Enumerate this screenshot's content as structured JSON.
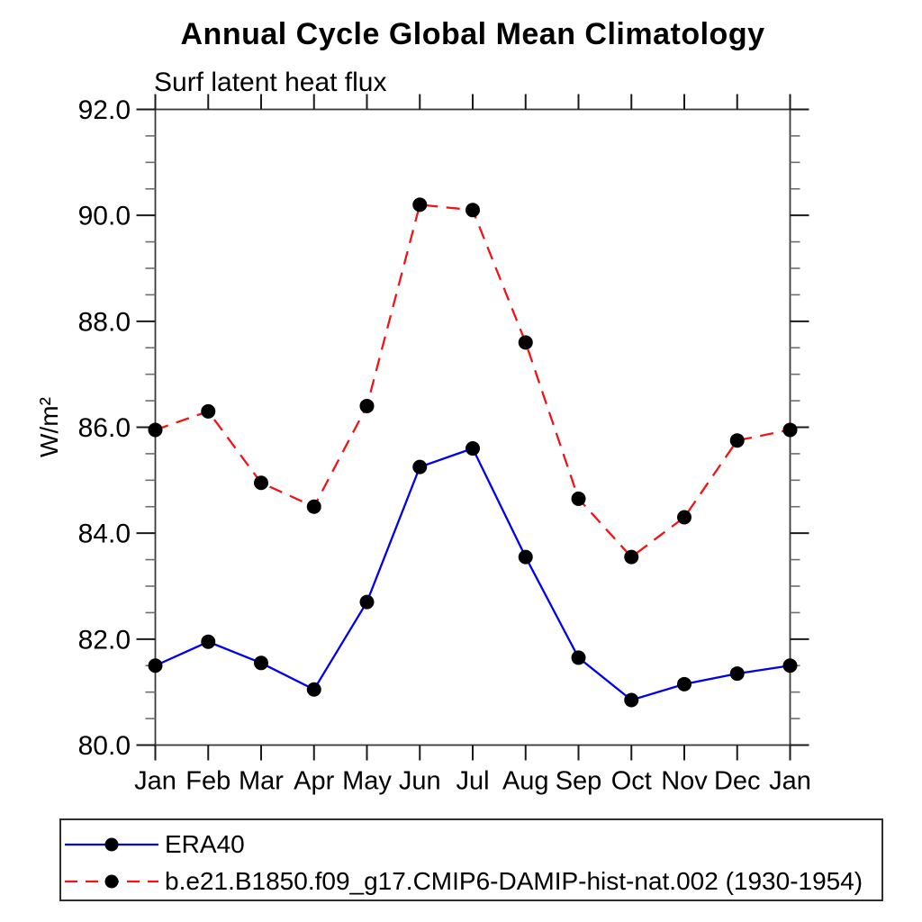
{
  "title": "Annual Cycle Global Mean Climatology",
  "subtitle": "Surf latent heat flux",
  "chart_data": {
    "type": "line",
    "title": "Annual Cycle Global Mean Climatology",
    "subtitle": "Surf latent heat flux",
    "ylabel": "W/m²",
    "categories": [
      "Jan",
      "Feb",
      "Mar",
      "Apr",
      "May",
      "Jun",
      "Jul",
      "Aug",
      "Sep",
      "Oct",
      "Nov",
      "Dec",
      "Jan"
    ],
    "ylim": [
      80.0,
      92.0
    ],
    "ytick_major_step": 2.0,
    "ytick_minor_step": 0.5,
    "ytick_labels": [
      "80.0",
      "82.0",
      "84.0",
      "86.0",
      "88.0",
      "90.0",
      "92.0"
    ],
    "grid": false,
    "legend_position": "bottom-left-box",
    "marker": "filled-circle",
    "marker_color": "#000000",
    "series": [
      {
        "name": "ERA40",
        "color": "#0000ee",
        "style": "solid",
        "values": [
          81.5,
          81.95,
          81.55,
          81.05,
          82.7,
          85.25,
          85.6,
          83.55,
          81.65,
          80.85,
          81.15,
          81.35,
          81.5
        ]
      },
      {
        "name": "b.e21.B1850.f09_g17.CMIP6-DAMIP-hist-nat.002 (1930-1954)",
        "color": "#f01418",
        "style": "dashed",
        "values": [
          85.95,
          86.3,
          84.95,
          84.5,
          86.4,
          90.2,
          90.1,
          87.6,
          84.65,
          83.55,
          84.3,
          85.75,
          85.95
        ]
      }
    ]
  }
}
